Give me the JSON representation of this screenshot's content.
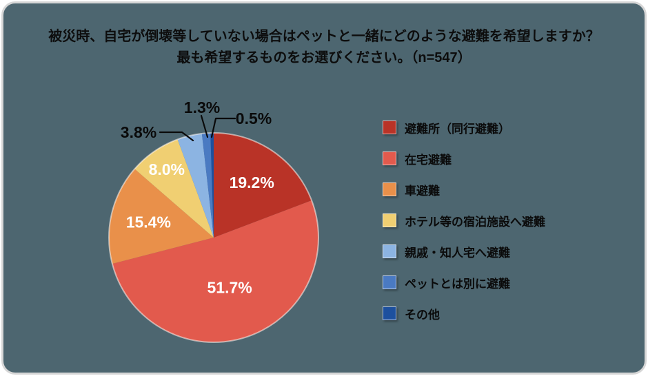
{
  "title": {
    "line1": "被災時、自宅が倒壊等していない場合はペットと一緒にどのような避難を希望しますか？",
    "line2": "最も希望するものをお選びください。（n=547）"
  },
  "sample_size_text": "n=547",
  "colors": {
    "card_background": "#4d6670",
    "card_border": "#d6d6d6",
    "title_text": "#0d0d0d",
    "inside_label_text": "#ffffff",
    "outside_label_text": "#0a0a0a"
  },
  "chart_data": {
    "type": "pie",
    "title": "被災時、自宅が倒壊等していない場合はペットと一緒にどのような避難を希望しますか？ 最も希望するものをお選びください。（n=547）",
    "n": 547,
    "start_angle": "12-o-clock",
    "direction": "clockwise",
    "legend_position": "right",
    "grid": false,
    "slices": [
      {
        "label": "避難所（同行避難）",
        "value_pct": 19.2,
        "display": "19.2%",
        "color": "#b93327",
        "label_placement": "inside"
      },
      {
        "label": "在宅避難",
        "value_pct": 51.7,
        "display": "51.7%",
        "color": "#e25a4d",
        "label_placement": "inside"
      },
      {
        "label": "車避難",
        "value_pct": 15.4,
        "display": "15.4%",
        "color": "#e9904a",
        "label_placement": "inside"
      },
      {
        "label": "ホテル等の宿泊施設へ避難",
        "value_pct": 8.0,
        "display": "8.0%",
        "color": "#f0cf72",
        "label_placement": "inside"
      },
      {
        "label": "親戚・知人宅へ避難",
        "value_pct": 3.8,
        "display": "3.8%",
        "color": "#8cb4e2",
        "label_placement": "outside"
      },
      {
        "label": "ペットとは別に避難",
        "value_pct": 1.3,
        "display": "1.3%",
        "color": "#4a7ac2",
        "label_placement": "outside"
      },
      {
        "label": "その他",
        "value_pct": 0.5,
        "display": "0.5%",
        "color": "#1d509e",
        "label_placement": "outside"
      }
    ]
  }
}
